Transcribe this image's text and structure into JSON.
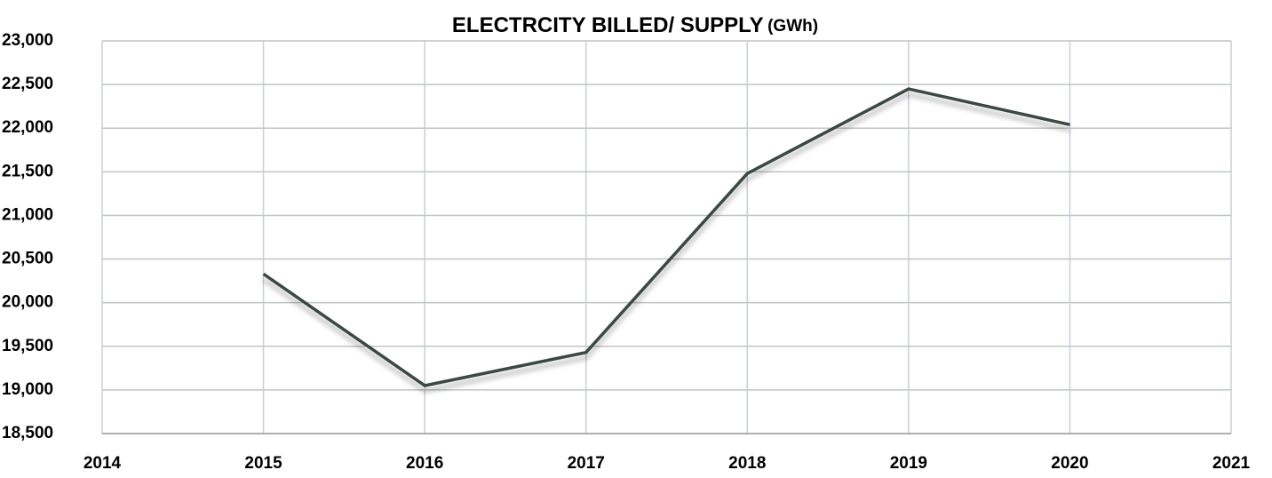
{
  "chart_data": {
    "type": "line",
    "title": "ELECTRCITY BILLED/ SUPPLY",
    "title_unit": "(GWh)",
    "x": [
      2015,
      2016,
      2017,
      2018,
      2019,
      2020
    ],
    "series": [
      {
        "name": "Electricity billed/ supply",
        "color": "#3b4a42",
        "values": [
          20330,
          19050,
          19430,
          21480,
          22450,
          22040
        ]
      }
    ],
    "xlim": [
      2014,
      2021
    ],
    "xticks": [
      2014,
      2015,
      2016,
      2017,
      2018,
      2019,
      2020,
      2021
    ],
    "ylim": [
      18500,
      23000
    ],
    "yticks": [
      {
        "value": 18500,
        "label": "18,500"
      },
      {
        "value": 19000,
        "label": "19,000"
      },
      {
        "value": 19500,
        "label": "19,500"
      },
      {
        "value": 20000,
        "label": "20,000"
      },
      {
        "value": 20500,
        "label": "20,500"
      },
      {
        "value": 21000,
        "label": "21,000"
      },
      {
        "value": 21500,
        "label": "21,500"
      },
      {
        "value": 22000,
        "label": "22,000"
      },
      {
        "value": 22500,
        "label": "22,500"
      },
      {
        "value": 23000,
        "label": "23,000"
      }
    ],
    "grid": true
  }
}
